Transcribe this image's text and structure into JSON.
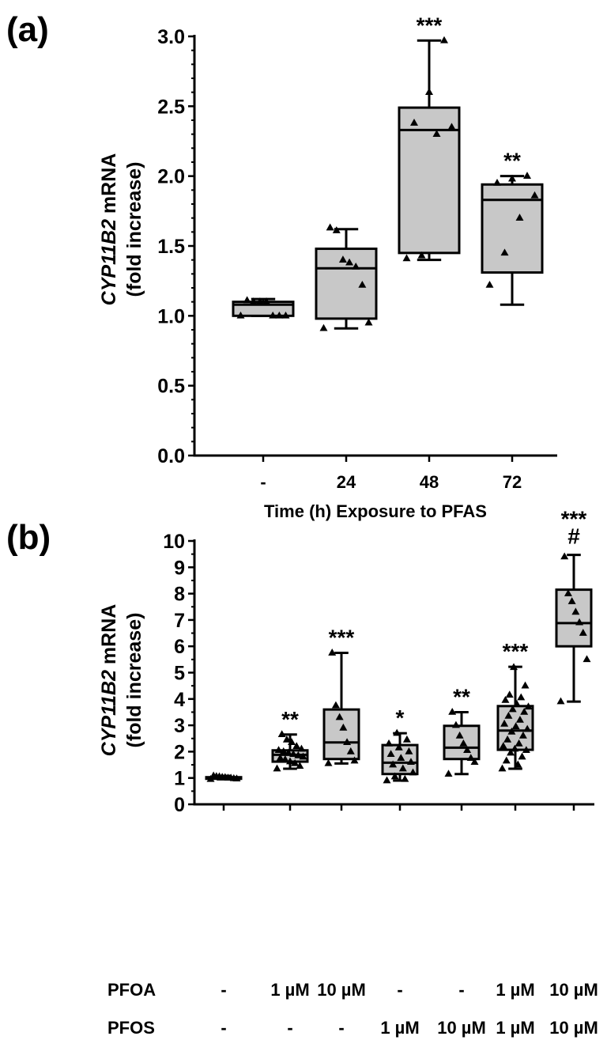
{
  "chart_data": [
    {
      "type": "box",
      "panel_label": "(a)",
      "ylabel_italic": "CYP11B2",
      "ylabel_rest": " mRNA",
      "ylabel_line2": "(fold increase)",
      "xlabel": "Time (h) Exposure to PFAS",
      "ylim": [
        0,
        3.0
      ],
      "yticks": [
        "0.0",
        "0.5",
        "1.0",
        "1.5",
        "2.0",
        "2.5",
        "3.0"
      ],
      "categories": [
        "-",
        "24",
        "48",
        "72"
      ],
      "boxes": [
        {
          "min": 1.0,
          "q1": 1.0,
          "median": 1.08,
          "q3": 1.1,
          "max": 1.12,
          "points": [
            1.0,
            1.0,
            1.0,
            1.0,
            1.1,
            1.1,
            1.1,
            1.11
          ],
          "sig": ""
        },
        {
          "min": 0.91,
          "q1": 0.98,
          "median": 1.34,
          "q3": 1.48,
          "max": 1.62,
          "points": [
            0.91,
            0.95,
            1.22,
            1.35,
            1.38,
            1.4,
            1.61,
            1.63
          ],
          "sig": ""
        },
        {
          "min": 1.4,
          "q1": 1.45,
          "median": 2.33,
          "q3": 2.49,
          "max": 2.97,
          "points": [
            1.41,
            1.43,
            2.3,
            2.35,
            2.38,
            2.6,
            2.97
          ],
          "sig": "***"
        },
        {
          "min": 1.08,
          "q1": 1.31,
          "median": 1.83,
          "q3": 1.94,
          "max": 2.0,
          "points": [
            1.22,
            1.45,
            1.7,
            1.86,
            1.95,
            1.98,
            2.0
          ],
          "sig": "**"
        }
      ]
    },
    {
      "type": "box",
      "panel_label": "(b)",
      "ylabel_italic": "CYP11B2",
      "ylabel_rest": " mRNA",
      "ylabel_line2": "(fold increase)",
      "ylim": [
        0,
        10
      ],
      "yticks": [
        "0",
        "1",
        "2",
        "3",
        "4",
        "5",
        "6",
        "7",
        "8",
        "9",
        "10"
      ],
      "row_labels": [
        "PFOA",
        "PFOS"
      ],
      "pfoa_labels": [
        "-",
        "1 µM",
        "10 µM",
        "-",
        "-",
        "1 µM",
        "10 µM"
      ],
      "pfos_labels": [
        "-",
        "-",
        "-",
        "1 µM",
        "10 µM",
        "1 µM",
        "10 µM"
      ],
      "boxes": [
        {
          "min": 0.95,
          "q1": 0.97,
          "median": 1.0,
          "q3": 1.03,
          "max": 1.08,
          "points": [
            0.95,
            0.97,
            0.98,
            1.0,
            1.0,
            1.02,
            1.03,
            1.05,
            1.06,
            1.08
          ],
          "sig": "",
          "sig2": ""
        },
        {
          "min": 1.35,
          "q1": 1.62,
          "median": 1.88,
          "q3": 2.05,
          "max": 2.65,
          "points": [
            1.35,
            1.45,
            1.55,
            1.62,
            1.7,
            1.75,
            1.8,
            1.85,
            1.9,
            1.95,
            2.0,
            2.05,
            2.1,
            2.2,
            2.35,
            2.45,
            2.65
          ],
          "sig": "**",
          "sig2": ""
        },
        {
          "min": 1.55,
          "q1": 1.72,
          "median": 2.35,
          "q3": 3.6,
          "max": 5.75,
          "points": [
            1.55,
            1.65,
            2.0,
            2.35,
            2.9,
            3.3,
            3.75,
            5.75
          ],
          "sig": "***",
          "sig2": ""
        },
        {
          "min": 0.9,
          "q1": 1.15,
          "median": 1.58,
          "q3": 2.25,
          "max": 2.7,
          "points": [
            0.9,
            0.95,
            1.05,
            1.2,
            1.35,
            1.5,
            1.6,
            1.75,
            1.9,
            2.0,
            2.15,
            2.3,
            2.45,
            2.7
          ],
          "sig": "*",
          "sig2": ""
        },
        {
          "min": 1.15,
          "q1": 1.72,
          "median": 2.15,
          "q3": 2.98,
          "max": 3.5,
          "points": [
            1.15,
            1.6,
            1.75,
            2.05,
            2.3,
            2.6,
            3.0,
            3.5
          ],
          "sig": "**",
          "sig2": ""
        },
        {
          "min": 1.35,
          "q1": 2.07,
          "median": 2.8,
          "q3": 3.73,
          "max": 5.22,
          "points": [
            1.35,
            1.5,
            1.65,
            1.8,
            1.95,
            2.05,
            2.1,
            2.2,
            2.3,
            2.45,
            2.6,
            2.75,
            2.85,
            2.95,
            3.05,
            3.2,
            3.35,
            3.5,
            3.6,
            3.7,
            3.8,
            3.95,
            4.05,
            4.15,
            4.5,
            5.2
          ],
          "sig": "***",
          "sig2": ""
        },
        {
          "min": 3.9,
          "q1": 6.0,
          "median": 6.88,
          "q3": 8.15,
          "max": 9.47,
          "points": [
            3.9,
            5.5,
            6.5,
            6.9,
            7.3,
            7.7,
            8.0,
            9.4
          ],
          "sig": "***",
          "sig2": "#"
        }
      ]
    }
  ]
}
